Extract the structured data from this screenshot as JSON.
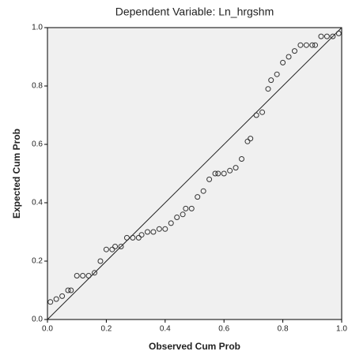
{
  "chart_data": {
    "type": "scatter",
    "title": "Dependent Variable: Ln_hrgshm",
    "x_label": "Observed Cum Prob",
    "y_label": "Expected Cum Prob",
    "xlim": [
      0,
      1
    ],
    "ylim": [
      0,
      1
    ],
    "xticks": [
      {
        "value": 0,
        "label": "0.0"
      },
      0.2,
      0.4,
      0.6,
      0.8,
      {
        "value": 1,
        "label": "1.0"
      }
    ],
    "yticks": [
      {
        "value": 0,
        "label": "0.0"
      },
      0.2,
      0.4,
      0.6,
      0.8,
      {
        "value": 1,
        "label": "1.0"
      }
    ],
    "grid": false,
    "reference_line": true,
    "color": "#333333",
    "x": [
      0.01,
      0.03,
      0.05,
      0.07,
      0.08,
      0.1,
      0.12,
      0.14,
      0.16,
      0.18,
      0.2,
      0.22,
      0.23,
      0.25,
      0.27,
      0.29,
      0.31,
      0.32,
      0.34,
      0.36,
      0.38,
      0.4,
      0.42,
      0.44,
      0.46,
      0.47,
      0.49,
      0.51,
      0.53,
      0.55,
      0.57,
      0.58,
      0.6,
      0.62,
      0.64,
      0.66,
      0.68,
      0.69,
      0.71,
      0.73,
      0.75,
      0.76,
      0.78,
      0.8,
      0.82,
      0.84,
      0.86,
      0.88,
      0.9,
      0.91,
      0.93,
      0.95,
      0.97,
      0.99
    ],
    "values": [
      0.06,
      0.07,
      0.08,
      0.1,
      0.1,
      0.15,
      0.15,
      0.15,
      0.16,
      0.2,
      0.24,
      0.24,
      0.25,
      0.25,
      0.28,
      0.28,
      0.28,
      0.29,
      0.3,
      0.3,
      0.31,
      0.31,
      0.33,
      0.35,
      0.36,
      0.38,
      0.38,
      0.42,
      0.44,
      0.48,
      0.5,
      0.5,
      0.5,
      0.51,
      0.52,
      0.55,
      0.61,
      0.62,
      0.7,
      0.71,
      0.79,
      0.82,
      0.84,
      0.88,
      0.9,
      0.92,
      0.94,
      0.94,
      0.94,
      0.94,
      0.97,
      0.97,
      0.97,
      0.98
    ]
  }
}
